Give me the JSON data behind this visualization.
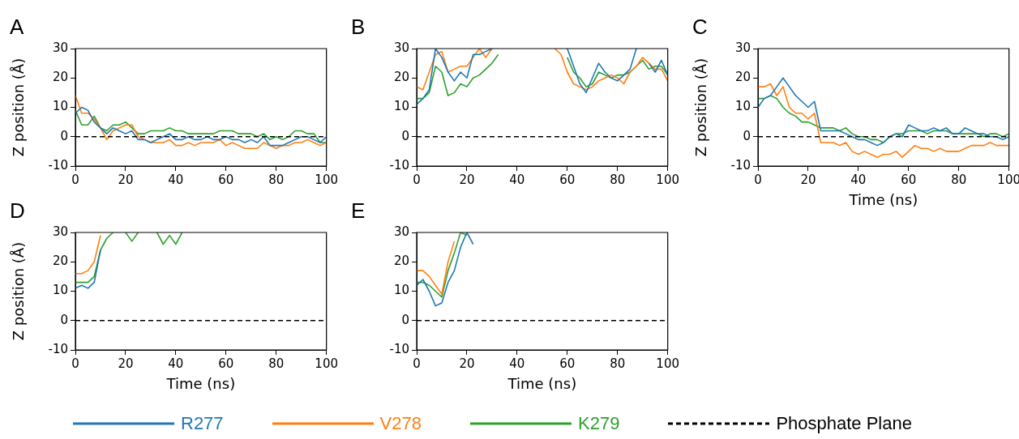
{
  "chart_data": [
    {
      "type": "line",
      "title": "A",
      "ylabel": "Z position (Å)",
      "marker": "none",
      "legend": "bottom",
      "x": [
        0,
        2.5,
        5,
        7.5,
        10,
        12.5,
        15,
        17.5,
        20,
        22.5,
        25,
        27.5,
        30,
        32.5,
        35,
        37.5,
        40,
        42.5,
        45,
        47.5,
        50,
        52.5,
        55,
        57.5,
        60,
        62.5,
        65,
        67.5,
        70,
        72.5,
        75,
        77.5,
        80,
        82.5,
        85,
        87.5,
        90,
        92.5,
        95,
        97.5,
        100
      ],
      "xlim": [
        0,
        100
      ],
      "xticks": [
        0,
        20,
        40,
        60,
        80,
        100
      ],
      "ylim": [
        -10,
        30
      ],
      "yticks": [
        -10,
        0,
        10,
        20,
        30
      ],
      "ref_lines": [
        {
          "axis": "y",
          "value": 0,
          "label": "Phosphate Plane",
          "color": "#000000",
          "line_style": "dashed"
        }
      ],
      "series": [
        {
          "name": "R277",
          "color": "#1f77b4",
          "values": [
            8,
            10,
            9,
            5,
            3,
            1,
            3,
            2,
            1,
            2,
            -1,
            -1,
            -2,
            -1,
            0,
            1,
            -1,
            -1,
            0,
            -1,
            -1,
            0,
            -1,
            -1,
            0,
            -1,
            -1,
            -2,
            -1,
            -2,
            0,
            -3,
            -3,
            -3,
            -2,
            -1,
            0,
            0,
            -1,
            -2,
            0
          ]
        },
        {
          "name": "V278",
          "color": "#ff7f0e",
          "values": [
            14,
            8,
            8,
            6,
            3,
            -1,
            2,
            3,
            4,
            4,
            0,
            -1,
            -2,
            -2,
            -2,
            -1,
            -3,
            -3,
            -2,
            -3,
            -2,
            -2,
            -2,
            -1,
            -3,
            -2,
            -3,
            -4,
            -4,
            -4,
            -2,
            -3,
            -4,
            -3,
            -3,
            -2,
            -2,
            -1,
            -2,
            -3,
            -2
          ]
        },
        {
          "name": "K279",
          "color": "#2ca02c",
          "values": [
            9,
            4,
            4,
            7,
            3,
            2,
            4,
            4,
            5,
            3,
            1,
            1,
            2,
            2,
            2,
            3,
            2,
            2,
            1,
            1,
            1,
            1,
            1,
            2,
            2,
            2,
            1,
            1,
            1,
            0,
            1,
            -1,
            0,
            -1,
            0,
            2,
            2,
            1,
            1,
            -2,
            -2
          ]
        }
      ]
    },
    {
      "type": "line",
      "title": "B",
      "marker": "none",
      "x": [
        0,
        2.5,
        5,
        7.5,
        10,
        12.5,
        15,
        17.5,
        20,
        22.5,
        25,
        27.5,
        30,
        32.5,
        35,
        37.5,
        40,
        42.5,
        45,
        47.5,
        50,
        52.5,
        55,
        57.5,
        60,
        62.5,
        65,
        67.5,
        70,
        72.5,
        75,
        77.5,
        80,
        82.5,
        85,
        87.5,
        90,
        92.5,
        95,
        97.5,
        100
      ],
      "xlim": [
        0,
        100
      ],
      "xticks": [
        0,
        20,
        40,
        60,
        80,
        100
      ],
      "ylim": [
        -10,
        30
      ],
      "yticks": [
        -10,
        0,
        10,
        20,
        30
      ],
      "ref_lines": [
        {
          "axis": "y",
          "value": 0,
          "color": "#000000",
          "line_style": "dashed"
        }
      ],
      "series": [
        {
          "color": "#1f77b4",
          "values": [
            11,
            13,
            16,
            30,
            27,
            22,
            19,
            22,
            20,
            28,
            28,
            29,
            30,
            null,
            null,
            null,
            null,
            null,
            null,
            null,
            null,
            null,
            null,
            null,
            30,
            24,
            18,
            15,
            20,
            25,
            22,
            20,
            19,
            21,
            23,
            30,
            null,
            25,
            22,
            26,
            21
          ]
        },
        {
          "color": "#ff7f0e",
          "values": [
            17,
            16,
            22,
            28,
            29,
            22,
            23,
            24,
            24,
            27,
            30,
            27,
            30,
            null,
            null,
            null,
            null,
            null,
            null,
            null,
            null,
            null,
            30,
            28,
            22,
            18,
            17,
            16,
            17,
            19,
            20,
            21,
            20,
            18,
            22,
            24,
            27,
            25,
            23,
            23,
            19
          ]
        },
        {
          "color": "#2ca02c",
          "values": [
            13,
            13,
            15,
            24,
            22,
            14,
            15,
            18,
            17,
            20,
            21,
            23,
            25,
            28,
            null,
            null,
            null,
            null,
            null,
            null,
            null,
            null,
            null,
            null,
            27,
            22,
            20,
            17,
            18,
            22,
            21,
            20,
            21,
            21,
            22,
            24,
            26,
            23,
            24,
            24,
            21
          ]
        }
      ]
    },
    {
      "type": "line",
      "title": "C",
      "ylabel": "Z position (Å)",
      "xlabel": "Time (ns)",
      "marker": "none",
      "x": [
        0,
        2.5,
        5,
        7.5,
        10,
        12.5,
        15,
        17.5,
        20,
        22.5,
        25,
        27.5,
        30,
        32.5,
        35,
        37.5,
        40,
        42.5,
        45,
        47.5,
        50,
        52.5,
        55,
        57.5,
        60,
        62.5,
        65,
        67.5,
        70,
        72.5,
        75,
        77.5,
        80,
        82.5,
        85,
        87.5,
        90,
        92.5,
        95,
        97.5,
        100
      ],
      "xlim": [
        0,
        100
      ],
      "xticks": [
        0,
        20,
        40,
        60,
        80,
        100
      ],
      "ylim": [
        -10,
        30
      ],
      "yticks": [
        -10,
        0,
        10,
        20,
        30
      ],
      "ref_lines": [
        {
          "axis": "y",
          "value": 0,
          "color": "#000000",
          "line_style": "dashed"
        }
      ],
      "series": [
        {
          "color": "#1f77b4",
          "values": [
            10,
            13,
            14,
            17,
            20,
            17,
            14,
            12,
            10,
            12,
            2,
            2,
            2,
            2,
            1,
            0,
            -1,
            -1,
            -2,
            -3,
            -2,
            0,
            1,
            0,
            4,
            3,
            2,
            2,
            3,
            2,
            3,
            1,
            1,
            3,
            2,
            1,
            1,
            0,
            0,
            -1,
            0
          ]
        },
        {
          "color": "#ff7f0e",
          "values": [
            17,
            17,
            18,
            14,
            17,
            10,
            8,
            8,
            6,
            8,
            -2,
            -2,
            -2,
            -3,
            -2,
            -5,
            -6,
            -5,
            -6,
            -7,
            -6,
            -6,
            -5,
            -7,
            -5,
            -3,
            -4,
            -4,
            -5,
            -4,
            -5,
            -5,
            -5,
            -4,
            -3,
            -3,
            -3,
            -2,
            -3,
            -3,
            -3
          ]
        },
        {
          "color": "#2ca02c",
          "values": [
            13,
            13,
            14,
            13,
            10,
            8,
            7,
            5,
            5,
            4,
            3,
            3,
            3,
            2,
            3,
            1,
            0,
            0,
            -1,
            -1,
            -2,
            0,
            1,
            1,
            2,
            2,
            2,
            1,
            2,
            2,
            2,
            1,
            1,
            1,
            1,
            1,
            0,
            1,
            1,
            0,
            1
          ]
        }
      ]
    },
    {
      "type": "line",
      "title": "D",
      "ylabel": "Z position (Å)",
      "xlabel": "Time (ns)",
      "marker": "none",
      "x": [
        0,
        2.5,
        5,
        7.5,
        10,
        12.5,
        15,
        17.5,
        20,
        22.5,
        25,
        27.5,
        30,
        32.5,
        35,
        37.5,
        40,
        42.5
      ],
      "xlim": [
        0,
        100
      ],
      "xticks": [
        0,
        20,
        40,
        60,
        80,
        100
      ],
      "ylim": [
        -10,
        30
      ],
      "yticks": [
        -10,
        0,
        10,
        20,
        30
      ],
      "ref_lines": [
        {
          "axis": "y",
          "value": 0,
          "color": "#000000",
          "line_style": "dashed"
        }
      ],
      "series": [
        {
          "color": "#1f77b4",
          "values": [
            11,
            12,
            11,
            13,
            24,
            null,
            null,
            null,
            null,
            null,
            null,
            null,
            null,
            null,
            null,
            null,
            null,
            null
          ]
        },
        {
          "color": "#ff7f0e",
          "values": [
            16,
            16,
            17,
            20,
            29,
            null,
            null,
            null,
            null,
            null,
            null,
            null,
            null,
            null,
            null,
            null,
            null,
            null
          ]
        },
        {
          "color": "#2ca02c",
          "values": [
            13,
            13,
            13,
            15,
            24,
            28,
            30,
            null,
            30,
            27,
            30,
            null,
            null,
            30,
            26,
            29,
            26,
            30
          ]
        }
      ]
    },
    {
      "type": "line",
      "title": "E",
      "xlabel": "Time (ns)",
      "marker": "none",
      "x": [
        0,
        2.5,
        5,
        7.5,
        10,
        12.5,
        15,
        17.5,
        20,
        22.5
      ],
      "xlim": [
        0,
        100
      ],
      "xticks": [
        0,
        20,
        40,
        60,
        80,
        100
      ],
      "ylim": [
        -10,
        30
      ],
      "yticks": [
        -10,
        0,
        10,
        20,
        30
      ],
      "ref_lines": [
        {
          "axis": "y",
          "value": 0,
          "color": "#000000",
          "line_style": "dashed"
        }
      ],
      "series": [
        {
          "color": "#1f77b4",
          "values": [
            12,
            14,
            10,
            5,
            6,
            13,
            17,
            25,
            30,
            26
          ]
        },
        {
          "color": "#ff7f0e",
          "values": [
            17,
            17,
            15,
            12,
            9,
            20,
            27,
            null,
            null,
            null
          ]
        },
        {
          "color": "#2ca02c",
          "values": [
            13,
            13,
            12,
            10,
            8,
            17,
            23,
            30,
            29,
            null
          ]
        }
      ]
    }
  ]
}
